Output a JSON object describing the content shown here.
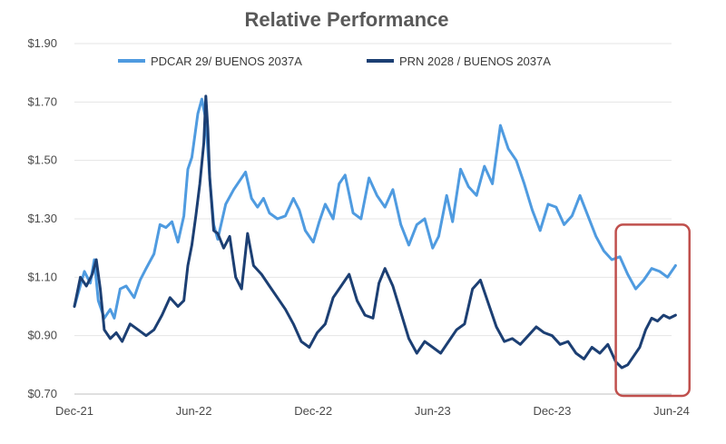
{
  "colors": {
    "series_light": "#4f9be0",
    "series_dark": "#1c3f73",
    "grid": "#e4e4e4",
    "axis": "#bfbfbf",
    "highlight_box": "#c0504d"
  },
  "chart_data": {
    "type": "line",
    "title": "Relative Performance",
    "xlabel": "",
    "ylabel": "",
    "y_tick_labels": [
      "$0.70",
      "$0.90",
      "$1.10",
      "$1.30",
      "$1.50",
      "$1.70",
      "$1.90"
    ],
    "y_ticks": [
      0.7,
      0.9,
      1.1,
      1.3,
      1.5,
      1.7,
      1.9
    ],
    "ylim": [
      0.7,
      1.9
    ],
    "x_tick_labels": [
      "Dec-21",
      "Jun-22",
      "Dec-22",
      "Jun-23",
      "Dec-23",
      "Jun-24"
    ],
    "x_ticks": [
      0,
      6,
      12,
      18,
      24,
      30
    ],
    "xlim": [
      0,
      30
    ],
    "x_unit": "months since Dec-21",
    "legend_position": "top-center",
    "grid": "horizontal",
    "highlight": {
      "x_range": [
        27.2,
        30.9
      ],
      "y_range": [
        0.7,
        1.28
      ]
    },
    "series": [
      {
        "name": "PDCAR 29/ BUENOS 2037A",
        "color_key": "series_light",
        "x": [
          0,
          0.5,
          0.8,
          1.0,
          1.2,
          1.5,
          1.8,
          2.0,
          2.3,
          2.6,
          3.0,
          3.3,
          3.6,
          4.0,
          4.3,
          4.6,
          4.9,
          5.2,
          5.5,
          5.7,
          5.9,
          6.0,
          6.2,
          6.4,
          6.6,
          6.8,
          7.0,
          7.2,
          7.6,
          8.0,
          8.3,
          8.6,
          8.9,
          9.2,
          9.5,
          9.8,
          10.2,
          10.6,
          11.0,
          11.3,
          11.6,
          12.0,
          12.3,
          12.6,
          13.0,
          13.3,
          13.6,
          14.0,
          14.4,
          14.8,
          15.2,
          15.6,
          16.0,
          16.4,
          16.8,
          17.2,
          17.6,
          18.0,
          18.3,
          18.7,
          19.0,
          19.4,
          19.8,
          20.2,
          20.6,
          21.0,
          21.4,
          21.8,
          22.2,
          22.6,
          23.0,
          23.4,
          23.8,
          24.2,
          24.6,
          25.0,
          25.4,
          25.8,
          26.2,
          26.6,
          27.0,
          27.4,
          27.8,
          28.2,
          28.6,
          29.0,
          29.4,
          29.8,
          30.2
        ],
        "values": [
          1.0,
          1.12,
          1.08,
          1.16,
          1.02,
          0.96,
          0.99,
          0.96,
          1.06,
          1.07,
          1.03,
          1.09,
          1.13,
          1.18,
          1.28,
          1.27,
          1.29,
          1.22,
          1.31,
          1.47,
          1.51,
          1.56,
          1.66,
          1.71,
          1.64,
          1.44,
          1.28,
          1.23,
          1.35,
          1.4,
          1.43,
          1.46,
          1.37,
          1.34,
          1.37,
          1.32,
          1.3,
          1.31,
          1.37,
          1.33,
          1.26,
          1.22,
          1.29,
          1.35,
          1.3,
          1.42,
          1.45,
          1.32,
          1.3,
          1.44,
          1.38,
          1.34,
          1.4,
          1.28,
          1.21,
          1.28,
          1.3,
          1.2,
          1.24,
          1.38,
          1.29,
          1.47,
          1.41,
          1.38,
          1.48,
          1.42,
          1.62,
          1.54,
          1.5,
          1.42,
          1.33,
          1.26,
          1.35,
          1.34,
          1.28,
          1.31,
          1.38,
          1.31,
          1.24,
          1.19,
          1.16,
          1.17,
          1.11,
          1.06,
          1.09,
          1.13,
          1.12,
          1.1,
          1.14
        ]
      },
      {
        "name": "PRN 2028 / BUENOS 2037A",
        "color_key": "series_dark",
        "x": [
          0,
          0.3,
          0.6,
          0.9,
          1.1,
          1.3,
          1.5,
          1.8,
          2.1,
          2.4,
          2.8,
          3.2,
          3.6,
          4.0,
          4.4,
          4.8,
          5.2,
          5.5,
          5.7,
          5.9,
          6.1,
          6.3,
          6.5,
          6.6,
          6.7,
          6.8,
          6.9,
          7.0,
          7.2,
          7.5,
          7.8,
          8.1,
          8.4,
          8.7,
          9.0,
          9.4,
          9.8,
          10.2,
          10.6,
          11.0,
          11.4,
          11.8,
          12.2,
          12.6,
          13.0,
          13.4,
          13.8,
          14.2,
          14.6,
          15.0,
          15.3,
          15.6,
          16.0,
          16.4,
          16.8,
          17.2,
          17.6,
          18.0,
          18.4,
          18.8,
          19.2,
          19.6,
          20.0,
          20.4,
          20.8,
          21.2,
          21.6,
          22.0,
          22.4,
          22.8,
          23.2,
          23.6,
          24.0,
          24.4,
          24.8,
          25.2,
          25.6,
          26.0,
          26.4,
          26.8,
          27.2,
          27.5,
          27.8,
          28.1,
          28.4,
          28.7,
          29.0,
          29.3,
          29.6,
          29.9,
          30.2
        ],
        "values": [
          1.0,
          1.1,
          1.07,
          1.11,
          1.16,
          1.06,
          0.92,
          0.89,
          0.91,
          0.88,
          0.94,
          0.92,
          0.9,
          0.92,
          0.97,
          1.03,
          1.0,
          1.02,
          1.14,
          1.21,
          1.31,
          1.42,
          1.56,
          1.72,
          1.61,
          1.44,
          1.35,
          1.26,
          1.25,
          1.2,
          1.24,
          1.1,
          1.06,
          1.25,
          1.14,
          1.11,
          1.07,
          1.03,
          0.99,
          0.94,
          0.88,
          0.86,
          0.91,
          0.94,
          1.03,
          1.07,
          1.11,
          1.02,
          0.97,
          0.96,
          1.08,
          1.13,
          1.07,
          0.98,
          0.89,
          0.84,
          0.88,
          0.86,
          0.84,
          0.88,
          0.92,
          0.94,
          1.06,
          1.09,
          1.01,
          0.93,
          0.88,
          0.89,
          0.87,
          0.9,
          0.93,
          0.91,
          0.9,
          0.87,
          0.88,
          0.84,
          0.82,
          0.86,
          0.84,
          0.87,
          0.81,
          0.79,
          0.8,
          0.83,
          0.86,
          0.92,
          0.96,
          0.95,
          0.97,
          0.96,
          0.97
        ]
      }
    ]
  }
}
